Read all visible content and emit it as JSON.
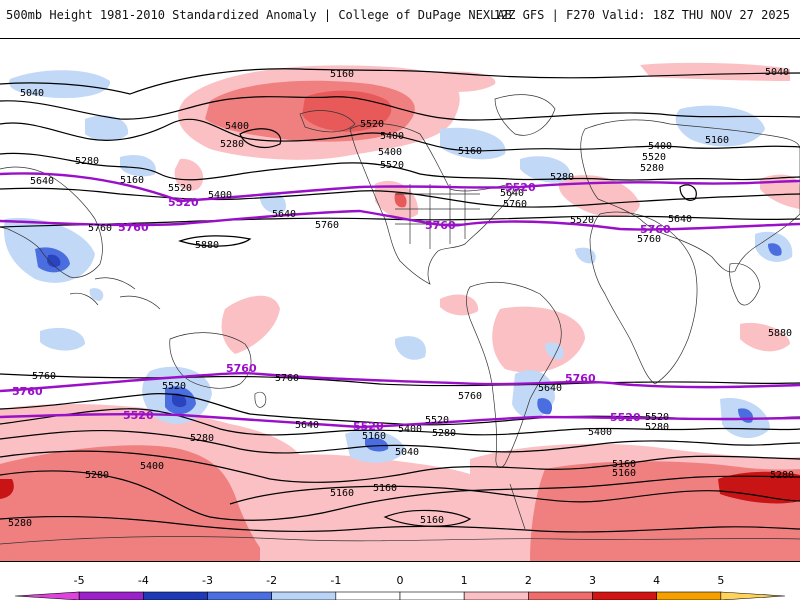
{
  "header": {
    "title_left": "500mb Height 1981-2010 Standardized Anomaly | College of DuPage NEXLAB",
    "title_right": "12Z GFS | F270 Valid: 18Z THU NOV 27 2025"
  },
  "map": {
    "projection": "global cylindrical",
    "contour_labels": [
      {
        "text": "5160"
      },
      {
        "text": "5040"
      },
      {
        "text": "5040"
      },
      {
        "text": "5400"
      },
      {
        "text": "5520"
      },
      {
        "text": "5400"
      },
      {
        "text": "5280"
      },
      {
        "text": "5160"
      },
      {
        "text": "5280"
      },
      {
        "text": "5640"
      },
      {
        "text": "5160"
      },
      {
        "text": "5520"
      },
      {
        "text": "5400"
      },
      {
        "text": "5640"
      },
      {
        "text": "5520"
      },
      {
        "text": "5400"
      },
      {
        "text": "5280"
      },
      {
        "text": "5160"
      },
      {
        "text": "5400"
      },
      {
        "text": "5520"
      },
      {
        "text": "5280"
      },
      {
        "text": "5640"
      },
      {
        "text": "5760"
      },
      {
        "text": "5760"
      },
      {
        "text": "5880"
      },
      {
        "text": "5640"
      },
      {
        "text": "5760"
      },
      {
        "text": "5880"
      },
      {
        "text": "5760"
      },
      {
        "text": "5520"
      },
      {
        "text": "5760"
      },
      {
        "text": "5760"
      },
      {
        "text": "5640"
      },
      {
        "text": "5400"
      },
      {
        "text": "5280"
      },
      {
        "text": "5520"
      },
      {
        "text": "5160"
      },
      {
        "text": "5040"
      },
      {
        "text": "5280"
      },
      {
        "text": "5400"
      },
      {
        "text": "5280"
      },
      {
        "text": "5160"
      },
      {
        "text": "5160"
      },
      {
        "text": "5640"
      },
      {
        "text": "5760"
      },
      {
        "text": "5400"
      },
      {
        "text": "5520"
      },
      {
        "text": "5280"
      },
      {
        "text": "5160"
      },
      {
        "text": "5280"
      },
      {
        "text": "5160"
      },
      {
        "text": "5280"
      },
      {
        "text": "5520"
      },
      {
        "text": "5160"
      }
    ],
    "highlight_labels": [
      {
        "text": "5520"
      },
      {
        "text": "5760"
      },
      {
        "text": "5520"
      },
      {
        "text": "5760"
      },
      {
        "text": "5760"
      },
      {
        "text": "5520"
      },
      {
        "text": "5760"
      },
      {
        "text": "5760"
      },
      {
        "text": "5520"
      },
      {
        "text": "5520"
      },
      {
        "text": "5760"
      },
      {
        "text": "5760"
      },
      {
        "text": "5520"
      }
    ]
  },
  "colorbar": {
    "ticks": [
      "-5",
      "-4",
      "-3",
      "-2",
      "-1",
      "0",
      "1",
      "2",
      "3",
      "4",
      "5"
    ],
    "colors": [
      "#dd44dd",
      "#9a22c8",
      "#1f3ab4",
      "#4a6ee0",
      "#b9d4f6",
      "#ffffff",
      "#ffffff",
      "#fbc0c4",
      "#ee6c6c",
      "#d21414",
      "#f5a000",
      "#ffd25a"
    ]
  },
  "colors": {
    "contour": "#000000",
    "highlight_contour": "#9a10c8",
    "land_border": "#333333"
  }
}
